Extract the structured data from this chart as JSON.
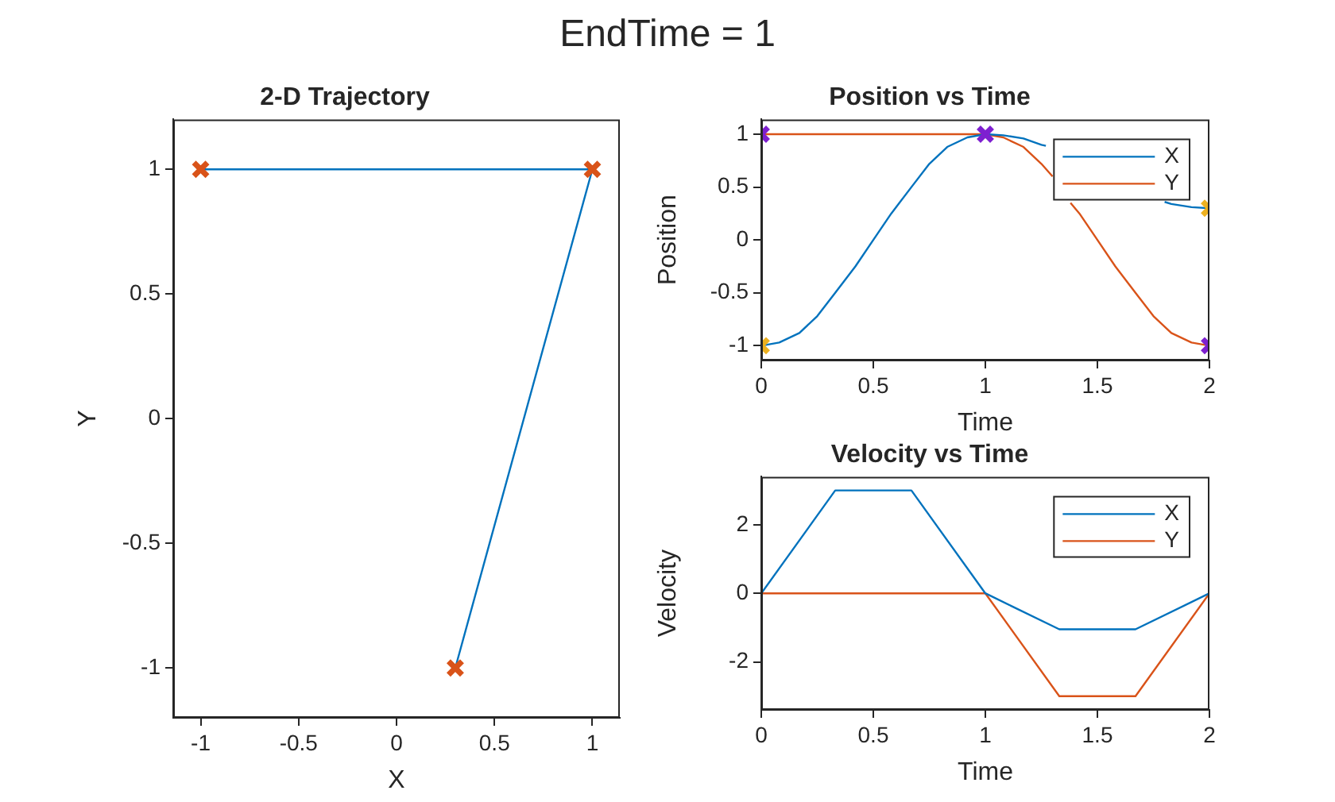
{
  "chart_data": [
    {
      "type": "line",
      "title": "2-D Trajectory",
      "xlabel": "X",
      "ylabel": "Y",
      "annotations": [
        "EndTime = 1"
      ],
      "xlim": [
        -1.14,
        1.14
      ],
      "ylim": [
        -1.2,
        1.2
      ],
      "xticks": [
        -1,
        -0.5,
        0,
        0.5,
        1
      ],
      "yticks": [
        -1,
        -0.5,
        0,
        0.5,
        1
      ],
      "grid": false,
      "series": [
        {
          "color": "#0072bd",
          "marker": "none",
          "x": [
            -1,
            1,
            0.3
          ],
          "values": [
            1,
            1,
            -1
          ]
        },
        {
          "type": "scatter",
          "marker": "cross",
          "color": "#d95319",
          "x": [
            -1,
            1,
            0.3
          ],
          "values": [
            1,
            1,
            -1
          ]
        }
      ]
    },
    {
      "type": "line",
      "title": "Position vs Time",
      "xlabel": "Time",
      "ylabel": "Position",
      "xlim": [
        0,
        2
      ],
      "ylim": [
        -1.14,
        1.14
      ],
      "xticks": [
        0,
        0.5,
        1,
        1.5,
        2
      ],
      "yticks": [
        -1,
        -0.5,
        0,
        0.5,
        1
      ],
      "grid": false,
      "legend": "top right",
      "series": [
        {
          "name": "X",
          "marker": "none",
          "color": "#0072bd",
          "x": [
            0,
            0.08,
            0.17,
            0.25,
            0.33,
            0.42,
            0.5,
            0.58,
            0.67,
            0.75,
            0.83,
            0.92,
            1,
            1.08,
            1.17,
            1.25,
            1.27,
            1.33,
            1.42,
            1.5,
            1.58,
            1.67,
            1.75,
            1.8,
            1.83,
            1.92,
            2
          ],
          "values": [
            -1,
            -0.97,
            -0.88,
            -0.72,
            -0.5,
            -0.25,
            0,
            0.25,
            0.5,
            0.72,
            0.88,
            0.97,
            1,
            0.99,
            0.96,
            0.9,
            0.89,
            null,
            null,
            null,
            null,
            null,
            null,
            0.36,
            0.34,
            0.31,
            0.3
          ]
        },
        {
          "name": "Y",
          "marker": "none",
          "color": "#d95319",
          "x": [
            0,
            0.5,
            1,
            1.08,
            1.17,
            1.25,
            1.3,
            1.33,
            1.38,
            1.42,
            1.5,
            1.58,
            1.67,
            1.75,
            1.83,
            1.92,
            2
          ],
          "values": [
            1,
            1,
            1,
            0.97,
            0.88,
            0.72,
            0.6,
            null,
            0.35,
            0.25,
            0,
            -0.25,
            -0.5,
            -0.72,
            -0.88,
            -0.97,
            -1
          ]
        },
        {
          "type": "scatter",
          "marker": "cross",
          "color": "#edb120",
          "x": [
            0,
            2
          ],
          "values": [
            -1,
            0.3
          ]
        },
        {
          "type": "scatter",
          "marker": "cross",
          "color": "#7e1fd0",
          "x": [
            0,
            1,
            2
          ],
          "values": [
            1,
            1,
            -1
          ]
        }
      ]
    },
    {
      "type": "line",
      "title": "Velocity vs Time",
      "xlabel": "Time",
      "ylabel": "Velocity",
      "xlim": [
        0,
        2
      ],
      "ylim": [
        -3.4,
        3.4
      ],
      "xticks": [
        0,
        0.5,
        1,
        1.5,
        2
      ],
      "yticks": [
        -2,
        0,
        2
      ],
      "grid": false,
      "legend": "top right",
      "series": [
        {
          "name": "X",
          "marker": "none",
          "color": "#0072bd",
          "x": [
            0,
            0.33,
            0.67,
            1,
            1.33,
            1.67,
            2
          ],
          "values": [
            0,
            3,
            3,
            0,
            -1.05,
            -1.05,
            0
          ]
        },
        {
          "name": "Y",
          "marker": "none",
          "color": "#d95319",
          "x": [
            0,
            0.33,
            0.67,
            1,
            1.33,
            1.67,
            2
          ],
          "values": [
            0,
            0,
            0,
            0,
            -3,
            -3,
            0
          ]
        }
      ]
    }
  ]
}
